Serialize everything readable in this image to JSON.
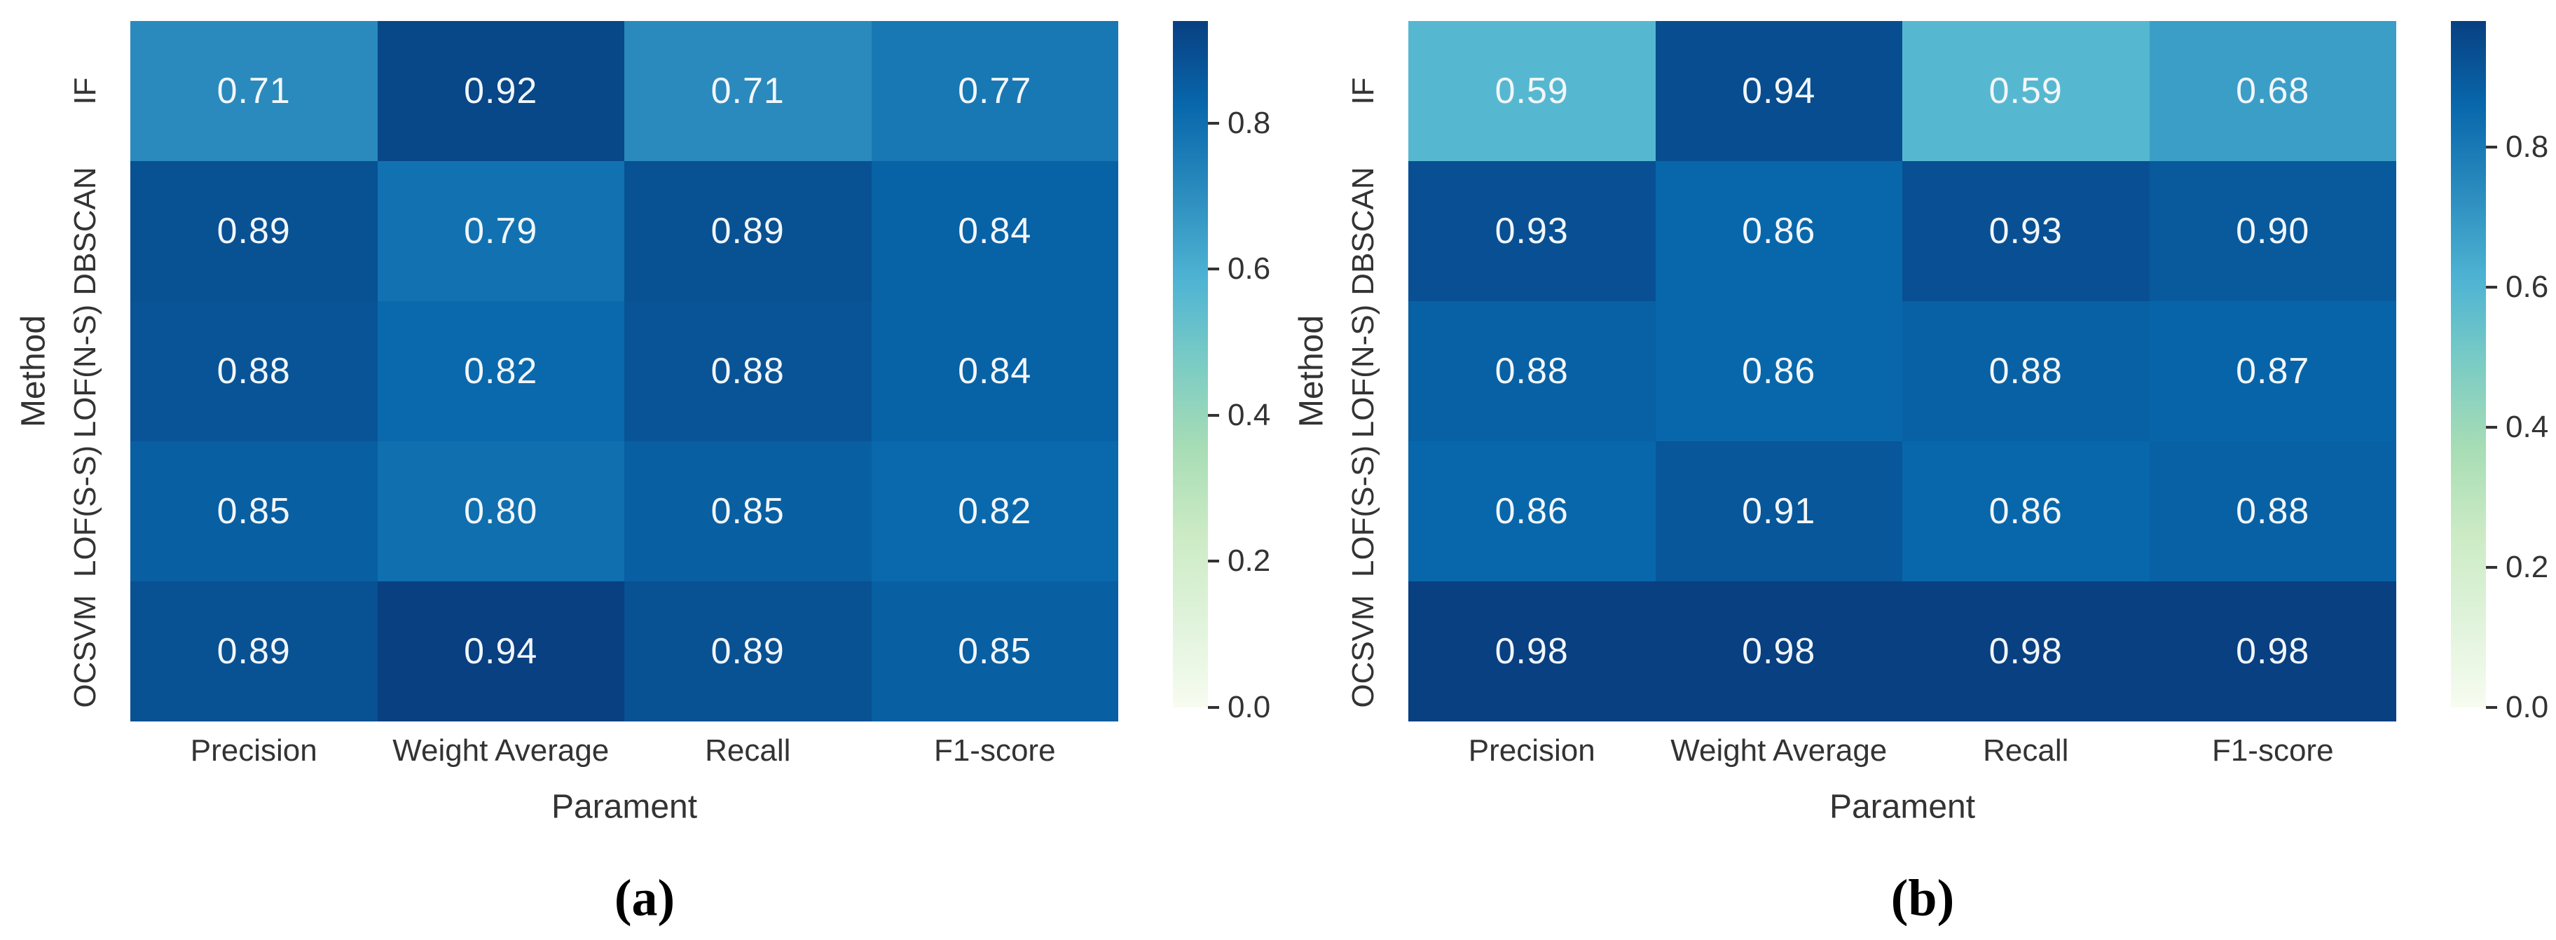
{
  "figure": {
    "background": "#ffffff",
    "axis_text_color": "#333333",
    "cell_text_color": "#f2f6fa",
    "colormap_name": "GnBu",
    "colormap_anchors": [
      "#f7fcf0",
      "#e0f3db",
      "#ccebc5",
      "#a8ddb5",
      "#7bccc4",
      "#4eb3d3",
      "#2b8cbe",
      "#0868ac",
      "#084081"
    ]
  },
  "chart_data": [
    {
      "type": "heatmap",
      "caption": "(a)",
      "xlabel": "Parament",
      "ylabel": "Method",
      "columns": [
        "Precision",
        "Weight Average",
        "Recall",
        "F1-score"
      ],
      "rows": [
        "IF",
        "DBSCAN",
        "LOF(N-S)",
        "LOF(S-S)",
        "OCSVM"
      ],
      "values": [
        [
          0.71,
          0.92,
          0.71,
          0.77
        ],
        [
          0.89,
          0.79,
          0.89,
          0.84
        ],
        [
          0.88,
          0.82,
          0.88,
          0.84
        ],
        [
          0.85,
          0.8,
          0.85,
          0.82
        ],
        [
          0.89,
          0.94,
          0.89,
          0.85
        ]
      ],
      "vmin": 0.0,
      "vmax": 0.94,
      "colorbar_ticks": [
        0.8,
        0.6,
        0.4,
        0.2,
        0.0
      ],
      "legend_position": "right-colorbar",
      "grid": false
    },
    {
      "type": "heatmap",
      "caption": "(b)",
      "xlabel": "Parament",
      "ylabel": "Method",
      "columns": [
        "Precision",
        "Weight Average",
        "Recall",
        "F1-score"
      ],
      "rows": [
        "IF",
        "DBSCAN",
        "LOF(N-S)",
        "LOF(S-S)",
        "OCSVM"
      ],
      "values": [
        [
          0.59,
          0.94,
          0.59,
          0.68
        ],
        [
          0.93,
          0.86,
          0.93,
          0.9
        ],
        [
          0.88,
          0.86,
          0.88,
          0.87
        ],
        [
          0.86,
          0.91,
          0.86,
          0.88
        ],
        [
          0.98,
          0.98,
          0.98,
          0.98
        ]
      ],
      "vmin": 0.0,
      "vmax": 0.98,
      "colorbar_ticks": [
        0.8,
        0.6,
        0.4,
        0.2,
        0.0
      ],
      "legend_position": "right-colorbar",
      "grid": false
    }
  ]
}
